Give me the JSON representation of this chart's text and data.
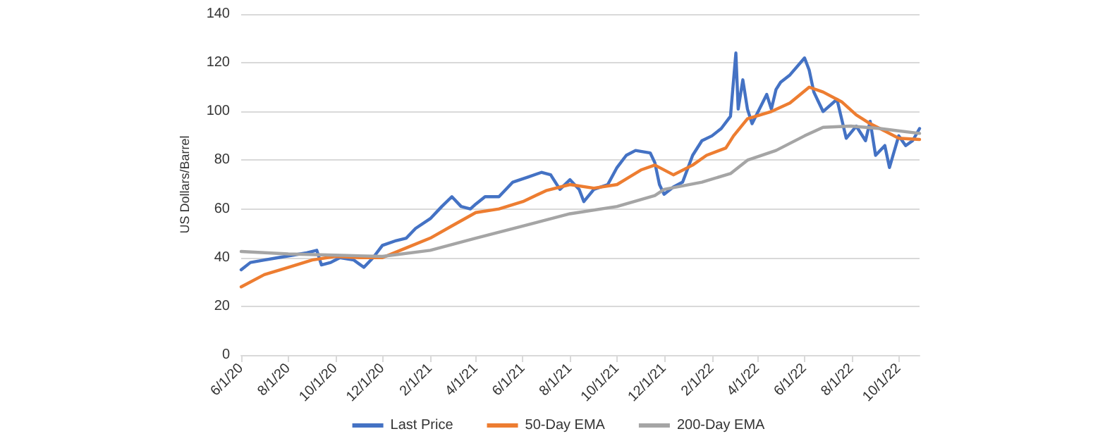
{
  "chart_data": {
    "type": "line",
    "ylabel": "US Dollars/Barrel",
    "ylim": [
      0,
      140
    ],
    "yticks": [
      0,
      20,
      40,
      60,
      80,
      100,
      120,
      140
    ],
    "grid": "y",
    "legend": "bottom",
    "marker": "none",
    "line_style": "solid",
    "xlim": [
      "2020-06-01",
      "2022-10-28"
    ],
    "xticks": [
      {
        "value": "2020-06-01",
        "label": "6/1/20"
      },
      {
        "value": "2020-08-01",
        "label": "8/1/20"
      },
      {
        "value": "2020-10-01",
        "label": "10/1/20"
      },
      {
        "value": "2020-12-01",
        "label": "12/1/20"
      },
      {
        "value": "2021-02-01",
        "label": "2/1/21"
      },
      {
        "value": "2021-04-01",
        "label": "4/1/21"
      },
      {
        "value": "2021-06-01",
        "label": "6/1/21"
      },
      {
        "value": "2021-08-01",
        "label": "8/1/21"
      },
      {
        "value": "2021-10-01",
        "label": "10/1/21"
      },
      {
        "value": "2021-12-01",
        "label": "12/1/21"
      },
      {
        "value": "2022-02-01",
        "label": "2/1/22"
      },
      {
        "value": "2022-04-01",
        "label": "4/1/22"
      },
      {
        "value": "2022-06-01",
        "label": "6/1/22"
      },
      {
        "value": "2022-08-01",
        "label": "8/1/22"
      },
      {
        "value": "2022-10-01",
        "label": "10/1/22"
      }
    ],
    "series": [
      {
        "name": "Last Price",
        "color": "#4472c4",
        "x": [
          "2020-06-01",
          "2020-06-13",
          "2020-07-01",
          "2020-07-19",
          "2020-08-07",
          "2020-08-25",
          "2020-09-07",
          "2020-09-13",
          "2020-09-25",
          "2020-10-07",
          "2020-10-25",
          "2020-11-07",
          "2020-11-19",
          "2020-12-01",
          "2020-12-19",
          "2021-01-01",
          "2021-01-13",
          "2021-02-01",
          "2021-02-16",
          "2021-03-01",
          "2021-03-13",
          "2021-03-25",
          "2021-04-01",
          "2021-04-13",
          "2021-05-01",
          "2021-05-19",
          "2021-06-07",
          "2021-06-25",
          "2021-07-07",
          "2021-07-19",
          "2021-08-01",
          "2021-08-13",
          "2021-08-19",
          "2021-09-01",
          "2021-09-19",
          "2021-10-01",
          "2021-10-13",
          "2021-10-25",
          "2021-11-13",
          "2021-11-19",
          "2021-11-25",
          "2021-12-01",
          "2021-12-13",
          "2021-12-25",
          "2022-01-07",
          "2022-01-19",
          "2022-02-01",
          "2022-02-13",
          "2022-02-25",
          "2022-03-04",
          "2022-03-07",
          "2022-03-13",
          "2022-03-19",
          "2022-03-25",
          "2022-04-13",
          "2022-04-19",
          "2022-04-25",
          "2022-05-01",
          "2022-05-13",
          "2022-06-01",
          "2022-06-07",
          "2022-06-13",
          "2022-06-19",
          "2022-06-25",
          "2022-07-13",
          "2022-07-25",
          "2022-08-07",
          "2022-08-19",
          "2022-08-25",
          "2022-09-01",
          "2022-09-13",
          "2022-09-19",
          "2022-10-01",
          "2022-10-10",
          "2022-10-19",
          "2022-10-28"
        ],
        "values": [
          35,
          38,
          39,
          40,
          41,
          42,
          43,
          37,
          38,
          40,
          39,
          36,
          40,
          45,
          47,
          48,
          52,
          56,
          61,
          65,
          61,
          60,
          62,
          65,
          65,
          71,
          73,
          75,
          74,
          68,
          72,
          68,
          63,
          68,
          70,
          77,
          82,
          84,
          83,
          79,
          70,
          66,
          69,
          71,
          82,
          88,
          90,
          93,
          98,
          124,
          101,
          113,
          101,
          95,
          107,
          101,
          109,
          112,
          115,
          122,
          117,
          108,
          104,
          100,
          105,
          89,
          94,
          88,
          96,
          82,
          86,
          77,
          90,
          86,
          88,
          93
        ]
      },
      {
        "name": "50-Day EMA",
        "color": "#ed7d31",
        "x": [
          "2020-06-01",
          "2020-07-01",
          "2020-08-01",
          "2020-09-01",
          "2020-10-01",
          "2020-11-01",
          "2020-12-01",
          "2021-01-01",
          "2021-02-01",
          "2021-03-01",
          "2021-04-01",
          "2021-05-01",
          "2021-06-01",
          "2021-07-01",
          "2021-08-01",
          "2021-09-01",
          "2021-10-01",
          "2021-11-01",
          "2021-11-19",
          "2021-12-13",
          "2022-01-07",
          "2022-01-25",
          "2022-02-19",
          "2022-03-01",
          "2022-03-19",
          "2022-04-19",
          "2022-05-13",
          "2022-06-07",
          "2022-06-25",
          "2022-07-19",
          "2022-08-07",
          "2022-08-25",
          "2022-09-13",
          "2022-10-01",
          "2022-10-28"
        ],
        "values": [
          28,
          33,
          36,
          39,
          40.5,
          40,
          40,
          44,
          48,
          53,
          58.5,
          60,
          63,
          67.5,
          70,
          68.5,
          70,
          76,
          78,
          74,
          78,
          82,
          85,
          90,
          97,
          100,
          103.5,
          110,
          108,
          104,
          98.6,
          95,
          92,
          89,
          88.5
        ]
      },
      {
        "name": "200-Day EMA",
        "color": "#a5a5a5",
        "x": [
          "2020-06-01",
          "2020-08-01",
          "2020-10-01",
          "2020-12-01",
          "2021-02-01",
          "2021-04-01",
          "2021-06-01",
          "2021-08-01",
          "2021-10-01",
          "2021-11-19",
          "2021-12-01",
          "2022-01-19",
          "2022-02-25",
          "2022-03-19",
          "2022-04-25",
          "2022-06-01",
          "2022-06-25",
          "2022-07-31",
          "2022-09-07",
          "2022-10-28"
        ],
        "values": [
          42.5,
          41.5,
          41,
          40.5,
          43,
          48,
          53,
          58,
          61,
          65.5,
          68,
          71,
          74.5,
          80,
          84,
          90,
          93.5,
          94,
          93,
          91
        ]
      }
    ]
  }
}
